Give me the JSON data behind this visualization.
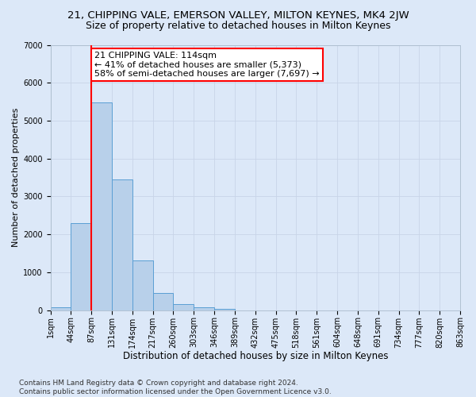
{
  "title": "21, CHIPPING VALE, EMERSON VALLEY, MILTON KEYNES, MK4 2JW",
  "subtitle": "Size of property relative to detached houses in Milton Keynes",
  "xlabel": "Distribution of detached houses by size in Milton Keynes",
  "ylabel": "Number of detached properties",
  "bar_values": [
    75,
    2300,
    5480,
    3440,
    1310,
    460,
    155,
    80,
    40,
    0,
    0,
    0,
    0,
    0,
    0,
    0,
    0,
    0,
    0,
    0
  ],
  "bin_labels": [
    "1sqm",
    "44sqm",
    "87sqm",
    "131sqm",
    "174sqm",
    "217sqm",
    "260sqm",
    "303sqm",
    "346sqm",
    "389sqm",
    "432sqm",
    "475sqm",
    "518sqm",
    "561sqm",
    "604sqm",
    "648sqm",
    "691sqm",
    "734sqm",
    "777sqm",
    "820sqm",
    "863sqm"
  ],
  "bar_color": "#b8d0ea",
  "bar_edge_color": "#5a9fd4",
  "vline_x": 2.0,
  "vline_color": "red",
  "annotation_text": "21 CHIPPING VALE: 114sqm\n← 41% of detached houses are smaller (5,373)\n58% of semi-detached houses are larger (7,697) →",
  "annotation_box_color": "white",
  "annotation_box_edge_color": "red",
  "ylim": [
    0,
    7000
  ],
  "yticks": [
    0,
    1000,
    2000,
    3000,
    4000,
    5000,
    6000,
    7000
  ],
  "grid_color": "#c8d4e8",
  "background_color": "#dce8f8",
  "footnote": "Contains HM Land Registry data © Crown copyright and database right 2024.\nContains public sector information licensed under the Open Government Licence v3.0.",
  "title_fontsize": 9.5,
  "subtitle_fontsize": 9,
  "xlabel_fontsize": 8.5,
  "ylabel_fontsize": 8,
  "tick_fontsize": 7,
  "annotation_fontsize": 8,
  "footnote_fontsize": 6.5
}
